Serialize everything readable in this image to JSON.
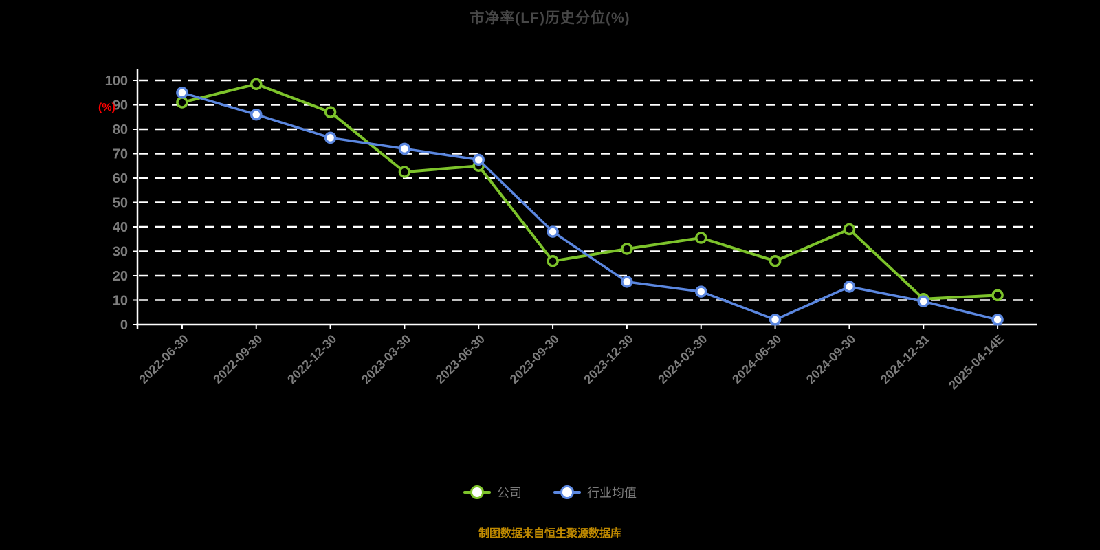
{
  "title": "市净率(LF)历史分位(%)",
  "footer": "制图数据来自恒生聚源数据库",
  "colors": {
    "background": "#000000",
    "title": "#474747",
    "axis": "#ffffff",
    "grid": "#ffffff",
    "tick_label": "#7d7d7d",
    "date_label": "#7d7d7d",
    "ylabel": "#ff0000",
    "legend_text": "#7a7a7a",
    "footer": "#c08a00",
    "series_company": "#7dc32b",
    "series_industry": "#5b87e0"
  },
  "chart_data": {
    "type": "line",
    "title": "市净率(LF)历史分位(%)",
    "xlabel": "",
    "ylabel": "(%)",
    "ylim": [
      0,
      100
    ],
    "ytick_step": 10,
    "grid": "horizontal-dashed",
    "legend_position": "bottom",
    "categories": [
      "2022-06-30",
      "2022-09-30",
      "2022-12-30",
      "2023-03-30",
      "2023-06-30",
      "2023-09-30",
      "2023-12-30",
      "2024-03-30",
      "2024-06-30",
      "2024-09-30",
      "2024-12-31",
      "2025-04-14E"
    ],
    "series": [
      {
        "name": "公司",
        "color": "#7dc32b",
        "marker": "circle",
        "marker_fill": "#000000",
        "values": [
          91,
          98.5,
          87,
          62.5,
          65,
          26,
          31,
          35.5,
          26,
          39,
          10.5,
          12
        ]
      },
      {
        "name": "行业均值",
        "color": "#5b87e0",
        "marker": "circle",
        "marker_fill": "#ffffff",
        "values": [
          95,
          86,
          76.5,
          72,
          67.5,
          38,
          17.5,
          13.5,
          2,
          15.5,
          9.5,
          2
        ]
      }
    ]
  }
}
